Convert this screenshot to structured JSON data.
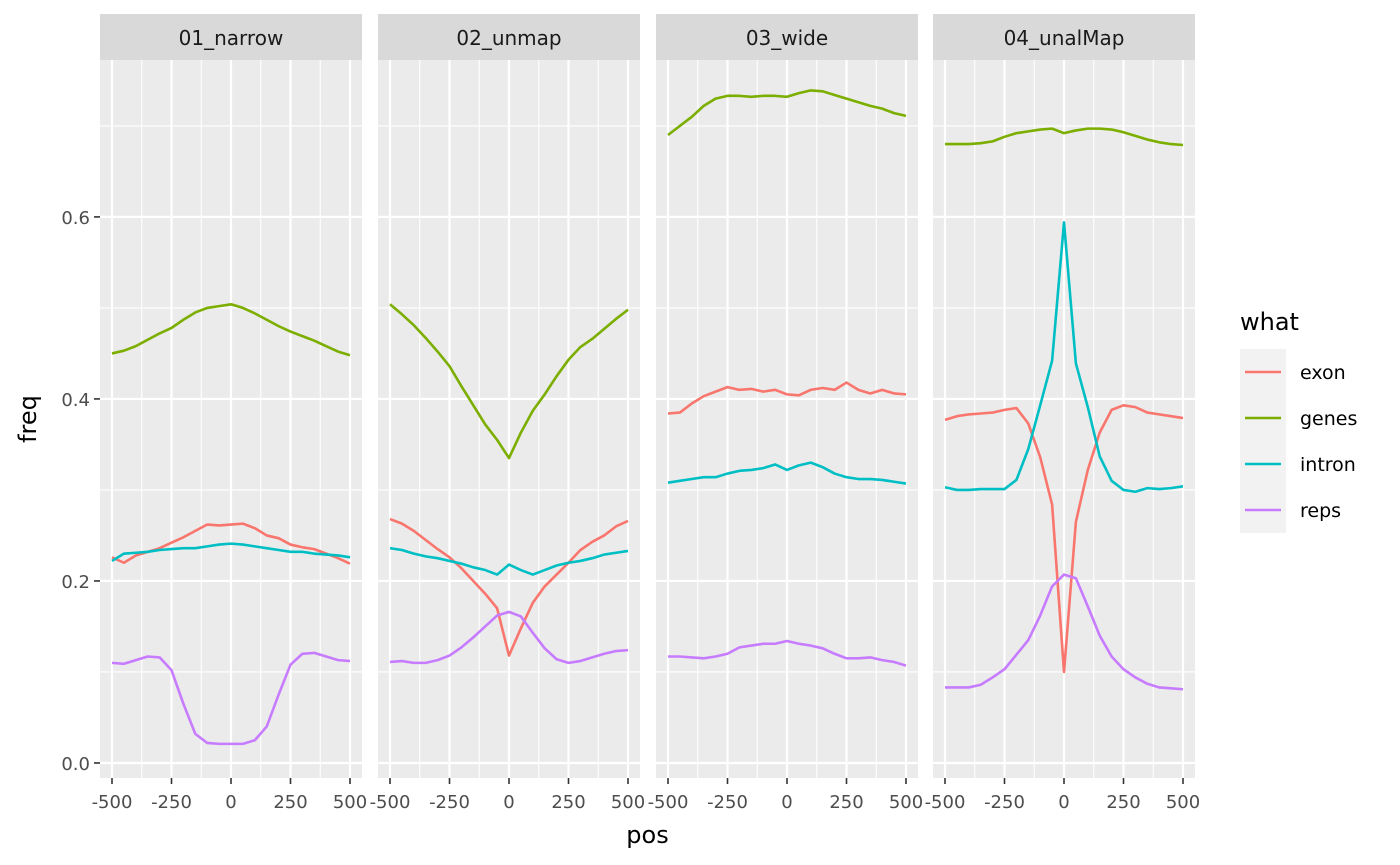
{
  "chart_data": {
    "type": "line",
    "facet_var": "group",
    "xlabel": "pos",
    "ylabel": "freq",
    "x_ticks": [
      -500,
      -250,
      0,
      250,
      500
    ],
    "x_tick_labels": [
      "-500",
      "-250",
      "0",
      "250",
      "500"
    ],
    "y_ticks": [
      0.0,
      0.2,
      0.4,
      0.6
    ],
    "y_tick_labels": [
      "0.0",
      "0.2",
      "0.4",
      "0.6"
    ],
    "xlim": [
      -500,
      500
    ],
    "ylim": [
      0.0,
      0.74
    ],
    "grid": true,
    "legend": {
      "title": "what",
      "placement": "right",
      "entries": [
        {
          "name": "exon",
          "color": "#F8766D"
        },
        {
          "name": "genes",
          "color": "#7CAE00"
        },
        {
          "name": "intron",
          "color": "#00BFC4"
        },
        {
          "name": "reps",
          "color": "#C77CFF"
        }
      ]
    },
    "x": [
      -500,
      -450,
      -400,
      -350,
      -300,
      -250,
      -200,
      -150,
      -100,
      -50,
      0,
      50,
      100,
      150,
      200,
      250,
      300,
      350,
      400,
      450,
      500
    ],
    "panels": [
      {
        "name": "01_narrow",
        "series": [
          {
            "name": "exon",
            "values": [
              0.226,
              0.22,
              0.228,
              0.232,
              0.236,
              0.242,
              0.248,
              0.255,
              0.262,
              0.261,
              0.262,
              0.263,
              0.258,
              0.25,
              0.247,
              0.24,
              0.237,
              0.235,
              0.23,
              0.225,
              0.219
            ]
          },
          {
            "name": "genes",
            "values": [
              0.45,
              0.453,
              0.458,
              0.465,
              0.472,
              0.478,
              0.487,
              0.495,
              0.5,
              0.502,
              0.504,
              0.5,
              0.494,
              0.487,
              0.48,
              0.474,
              0.469,
              0.464,
              0.458,
              0.452,
              0.448
            ]
          },
          {
            "name": "intron",
            "values": [
              0.222,
              0.23,
              0.231,
              0.232,
              0.234,
              0.235,
              0.236,
              0.236,
              0.238,
              0.24,
              0.241,
              0.24,
              0.238,
              0.236,
              0.234,
              0.232,
              0.232,
              0.23,
              0.229,
              0.228,
              0.226
            ]
          },
          {
            "name": "reps",
            "values": [
              0.11,
              0.109,
              0.113,
              0.117,
              0.116,
              0.102,
              0.065,
              0.032,
              0.022,
              0.021,
              0.021,
              0.021,
              0.025,
              0.04,
              0.075,
              0.108,
              0.12,
              0.121,
              0.117,
              0.113,
              0.112
            ]
          }
        ]
      },
      {
        "name": "02_unmap",
        "series": [
          {
            "name": "exon",
            "values": [
              0.268,
              0.263,
              0.255,
              0.245,
              0.235,
              0.226,
              0.214,
              0.2,
              0.186,
              0.17,
              0.118,
              0.148,
              0.176,
              0.194,
              0.207,
              0.22,
              0.234,
              0.243,
              0.25,
              0.26,
              0.266
            ]
          },
          {
            "name": "genes",
            "values": [
              0.504,
              0.493,
              0.481,
              0.467,
              0.452,
              0.436,
              0.414,
              0.393,
              0.372,
              0.355,
              0.335,
              0.363,
              0.387,
              0.405,
              0.425,
              0.443,
              0.457,
              0.466,
              0.477,
              0.488,
              0.498
            ]
          },
          {
            "name": "intron",
            "values": [
              0.236,
              0.234,
              0.23,
              0.227,
              0.225,
              0.222,
              0.219,
              0.215,
              0.212,
              0.207,
              0.218,
              0.212,
              0.207,
              0.212,
              0.217,
              0.22,
              0.222,
              0.225,
              0.229,
              0.231,
              0.233
            ]
          },
          {
            "name": "reps",
            "values": [
              0.111,
              0.112,
              0.11,
              0.11,
              0.113,
              0.118,
              0.127,
              0.138,
              0.15,
              0.162,
              0.166,
              0.161,
              0.143,
              0.126,
              0.114,
              0.11,
              0.112,
              0.116,
              0.12,
              0.123,
              0.124
            ]
          }
        ]
      },
      {
        "name": "03_wide",
        "series": [
          {
            "name": "exon",
            "values": [
              0.384,
              0.385,
              0.395,
              0.403,
              0.408,
              0.413,
              0.41,
              0.411,
              0.408,
              0.41,
              0.405,
              0.404,
              0.41,
              0.412,
              0.41,
              0.418,
              0.41,
              0.406,
              0.41,
              0.406,
              0.405
            ]
          },
          {
            "name": "genes",
            "values": [
              0.69,
              0.7,
              0.71,
              0.722,
              0.73,
              0.733,
              0.733,
              0.732,
              0.733,
              0.733,
              0.732,
              0.736,
              0.739,
              0.738,
              0.734,
              0.73,
              0.726,
              0.722,
              0.719,
              0.714,
              0.711
            ]
          },
          {
            "name": "intron",
            "values": [
              0.308,
              0.31,
              0.312,
              0.314,
              0.314,
              0.318,
              0.321,
              0.322,
              0.324,
              0.328,
              0.322,
              0.327,
              0.33,
              0.325,
              0.318,
              0.314,
              0.312,
              0.312,
              0.311,
              0.309,
              0.307
            ]
          },
          {
            "name": "reps",
            "values": [
              0.117,
              0.117,
              0.116,
              0.115,
              0.117,
              0.12,
              0.127,
              0.129,
              0.131,
              0.131,
              0.134,
              0.131,
              0.129,
              0.126,
              0.12,
              0.115,
              0.115,
              0.116,
              0.113,
              0.111,
              0.107
            ]
          }
        ]
      },
      {
        "name": "04_unalMap",
        "series": [
          {
            "name": "exon",
            "values": [
              0.377,
              0.381,
              0.383,
              0.384,
              0.385,
              0.388,
              0.39,
              0.373,
              0.336,
              0.284,
              0.1,
              0.265,
              0.322,
              0.363,
              0.388,
              0.393,
              0.391,
              0.385,
              0.383,
              0.381,
              0.379
            ]
          },
          {
            "name": "genes",
            "values": [
              0.68,
              0.68,
              0.68,
              0.681,
              0.683,
              0.688,
              0.692,
              0.694,
              0.696,
              0.697,
              0.692,
              0.695,
              0.697,
              0.697,
              0.696,
              0.693,
              0.689,
              0.685,
              0.682,
              0.68,
              0.679
            ]
          },
          {
            "name": "intron",
            "values": [
              0.303,
              0.3,
              0.3,
              0.301,
              0.301,
              0.301,
              0.311,
              0.345,
              0.393,
              0.442,
              0.594,
              0.439,
              0.391,
              0.337,
              0.31,
              0.3,
              0.298,
              0.302,
              0.301,
              0.302,
              0.304
            ]
          },
          {
            "name": "reps",
            "values": [
              0.083,
              0.083,
              0.083,
              0.086,
              0.094,
              0.103,
              0.119,
              0.135,
              0.162,
              0.194,
              0.207,
              0.203,
              0.172,
              0.14,
              0.117,
              0.103,
              0.094,
              0.087,
              0.083,
              0.082,
              0.081
            ]
          }
        ]
      }
    ]
  }
}
